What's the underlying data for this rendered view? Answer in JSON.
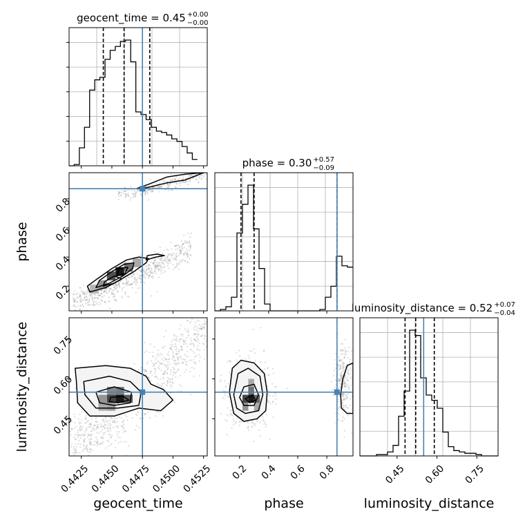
{
  "chart_data": {
    "type": "corner",
    "parameters": [
      "geocent_time",
      "phase",
      "luminosity_distance"
    ],
    "truth": {
      "geocent_time": 0.4475,
      "phase": 0.87,
      "luminosity_distance": 0.55
    },
    "titles": {
      "geocent_time": {
        "name": "geocent_time",
        "median": "0.45",
        "plus": "+0.00",
        "minus": "−0.00"
      },
      "phase": {
        "name": "phase",
        "median": "0.30",
        "plus": "+0.57",
        "minus": "−0.09"
      },
      "luminosity_distance": {
        "name": "luminosity_distance",
        "median": "0.52",
        "plus": "+0.07",
        "minus": "−0.04"
      }
    },
    "axes": {
      "geocent_time": {
        "range": [
          0.4415,
          0.4528
        ],
        "ticks": [
          0.4425,
          0.445,
          0.4475,
          0.45,
          0.4525
        ],
        "tick_labels": [
          "0.4425",
          "0.4450",
          "0.4475",
          "0.4500",
          "0.4525"
        ],
        "label": "geocent_time"
      },
      "phase": {
        "range": [
          0.03,
          0.98
        ],
        "ticks": [
          0.2,
          0.4,
          0.6,
          0.8
        ],
        "tick_labels": [
          "0.2",
          "0.4",
          "0.6",
          "0.8"
        ],
        "label": "phase"
      },
      "luminosity_distance": {
        "range": [
          0.31,
          0.83
        ],
        "ticks": [
          0.45,
          0.6,
          0.75
        ],
        "tick_labels": [
          "0.45",
          "0.60",
          "0.75"
        ],
        "label": "luminosity_distance"
      }
    },
    "histograms": {
      "geocent_time": {
        "bin_edges": [
          0.4415,
          0.44192,
          0.44234,
          0.44276,
          0.44318,
          0.4436,
          0.44402,
          0.44444,
          0.44486,
          0.44528,
          0.4457,
          0.44612,
          0.44654,
          0.44696,
          0.44738,
          0.4478,
          0.44822,
          0.44864,
          0.44906,
          0.44948,
          0.4499,
          0.45032,
          0.45074,
          0.45116,
          0.45158,
          0.452
        ],
        "counts": [
          0,
          1,
          14,
          30,
          59,
          67,
          69,
          83,
          90,
          93,
          97,
          98,
          81,
          42,
          40,
          36,
          30,
          27,
          26,
          24,
          21,
          19,
          15,
          10,
          5
        ],
        "quantiles": [
          0.4443,
          0.446,
          0.4481
        ]
      },
      "phase": {
        "bin_edges": [
          0.03,
          0.068,
          0.106,
          0.144,
          0.182,
          0.22,
          0.258,
          0.296,
          0.334,
          0.372,
          0.41,
          0.448,
          0.486,
          0.524,
          0.562,
          0.6,
          0.638,
          0.676,
          0.714,
          0.752,
          0.79,
          0.828,
          0.866,
          0.904,
          0.942,
          0.98
        ],
        "counts": [
          0,
          1,
          3,
          10,
          57,
          78,
          92,
          60,
          31,
          5,
          0,
          0,
          0,
          0,
          0,
          0,
          0,
          0,
          0,
          1,
          10,
          18,
          40,
          33,
          32
        ],
        "quantiles": [
          0.21,
          0.3,
          0.87
        ]
      },
      "luminosity_distance": {
        "bin_edges": [
          0.31,
          0.3308,
          0.3516,
          0.3724,
          0.3932,
          0.414,
          0.4348,
          0.4556,
          0.4764,
          0.4972,
          0.518,
          0.5388,
          0.5596,
          0.5804,
          0.6012,
          0.622,
          0.6428,
          0.6636,
          0.6844,
          0.7052,
          0.726,
          0.7468,
          0.7676,
          0.7884,
          0.8092,
          0.83
        ],
        "counts": [
          0,
          0,
          0,
          1,
          1,
          3,
          8,
          30,
          49,
          95,
          91,
          59,
          46,
          42,
          36,
          18,
          7,
          4,
          3,
          2,
          2,
          1,
          0,
          0,
          0
        ],
        "quantiles": [
          0.48,
          0.52,
          0.59
        ]
      }
    },
    "pairs": [
      {
        "x": "geocent_time",
        "y": "phase",
        "mode_bins": [
          {
            "x": [
              0.4453,
              0.446
            ],
            "y": [
              0.27,
              0.33
            ],
            "shade": 0.95
          },
          {
            "x": [
              0.4446,
              0.4453
            ],
            "y": [
              0.24,
              0.3
            ],
            "shade": 0.7
          },
          {
            "x": [
              0.446,
              0.4467
            ],
            "y": [
              0.3,
              0.36
            ],
            "shade": 0.55
          },
          {
            "x": [
              0.4439,
              0.4446
            ],
            "y": [
              0.18,
              0.24
            ],
            "shade": 0.4
          },
          {
            "x": [
              0.4432,
              0.4439
            ],
            "y": [
              0.15,
              0.21
            ],
            "shade": 0.25
          },
          {
            "x": [
              0.4467,
              0.4474
            ],
            "y": [
              0.33,
              0.39
            ],
            "shade": 0.3
          }
        ],
        "contours": [
          [
            [
              0.4432,
              0.16
            ],
            [
              0.4445,
              0.19
            ],
            [
              0.4456,
              0.24
            ],
            [
              0.4468,
              0.3
            ],
            [
              0.4478,
              0.36
            ],
            [
              0.448,
              0.39
            ],
            [
              0.4472,
              0.4
            ],
            [
              0.4462,
              0.38
            ],
            [
              0.445,
              0.32
            ],
            [
              0.4438,
              0.25
            ],
            [
              0.443,
              0.2
            ]
          ],
          [
            [
              0.4437,
              0.19
            ],
            [
              0.4448,
              0.22
            ],
            [
              0.4459,
              0.27
            ],
            [
              0.4467,
              0.32
            ],
            [
              0.4468,
              0.36
            ],
            [
              0.446,
              0.35
            ],
            [
              0.445,
              0.3
            ],
            [
              0.444,
              0.24
            ]
          ],
          [
            [
              0.4443,
              0.2
            ],
            [
              0.4452,
              0.22
            ],
            [
              0.4458,
              0.25
            ],
            [
              0.4452,
              0.27
            ],
            [
              0.4444,
              0.23
            ]
          ],
          [
            [
              0.4454,
              0.27
            ],
            [
              0.4461,
              0.29
            ],
            [
              0.4463,
              0.33
            ],
            [
              0.4456,
              0.32
            ]
          ],
          [
            [
              0.4478,
              0.38
            ],
            [
              0.4486,
              0.4
            ],
            [
              0.4493,
              0.41
            ],
            [
              0.4487,
              0.42
            ],
            [
              0.4479,
              0.41
            ]
          ],
          [
            [
              0.447,
              0.87
            ],
            [
              0.448,
              0.9
            ],
            [
              0.4495,
              0.95
            ],
            [
              0.451,
              0.97
            ],
            [
              0.4525,
              0.98
            ],
            [
              0.451,
              0.93
            ],
            [
              0.4495,
              0.91
            ],
            [
              0.448,
              0.88
            ]
          ]
        ],
        "scatter_bands": [
          {
            "x": [
              0.4418,
              0.4515
            ],
            "y": [
              0.1,
              0.47
            ],
            "n": 620,
            "spread": 0.045
          },
          {
            "x": [
              0.4455,
              0.4528
            ],
            "y": [
              0.83,
              0.98
            ],
            "n": 260,
            "spread": 0.02
          }
        ]
      },
      {
        "x": "geocent_time",
        "y": "luminosity_distance",
        "mode_bins": [
          {
            "x": [
              0.4453,
              0.446
            ],
            "y": [
              0.51,
              0.54
            ],
            "shade": 0.95
          },
          {
            "x": [
              0.4446,
              0.4453
            ],
            "y": [
              0.51,
              0.54
            ],
            "shade": 0.75
          },
          {
            "x": [
              0.446,
              0.4467
            ],
            "y": [
              0.51,
              0.54
            ],
            "shade": 0.65
          },
          {
            "x": [
              0.4439,
              0.4446
            ],
            "y": [
              0.51,
              0.54
            ],
            "shade": 0.4
          },
          {
            "x": [
              0.4446,
              0.4453
            ],
            "y": [
              0.54,
              0.57
            ],
            "shade": 0.45
          },
          {
            "x": [
              0.4453,
              0.446
            ],
            "y": [
              0.54,
              0.57
            ],
            "shade": 0.5
          },
          {
            "x": [
              0.4439,
              0.4446
            ],
            "y": [
              0.48,
              0.51
            ],
            "shade": 0.3
          },
          {
            "x": [
              0.4446,
              0.4453
            ],
            "y": [
              0.48,
              0.51
            ],
            "shade": 0.35
          }
        ],
        "contours": [
          [
            [
              0.442,
              0.64
            ],
            [
              0.4445,
              0.65
            ],
            [
              0.4465,
              0.64
            ],
            [
              0.4478,
              0.61
            ],
            [
              0.4482,
              0.58
            ],
            [
              0.4492,
              0.56
            ],
            [
              0.45,
              0.52
            ],
            [
              0.449,
              0.48
            ],
            [
              0.4472,
              0.49
            ],
            [
              0.4452,
              0.46
            ],
            [
              0.4432,
              0.46
            ],
            [
              0.4422,
              0.51
            ],
            [
              0.4421,
              0.59
            ]
          ],
          [
            [
              0.4427,
              0.59
            ],
            [
              0.4448,
              0.61
            ],
            [
              0.4465,
              0.59
            ],
            [
              0.4474,
              0.55
            ],
            [
              0.4472,
              0.5
            ],
            [
              0.4455,
              0.49
            ],
            [
              0.4437,
              0.49
            ],
            [
              0.4428,
              0.54
            ]
          ],
          [
            [
              0.4437,
              0.55
            ],
            [
              0.4452,
              0.57
            ],
            [
              0.4466,
              0.55
            ],
            [
              0.4465,
              0.51
            ],
            [
              0.4452,
              0.5
            ],
            [
              0.444,
              0.51
            ]
          ],
          [
            [
              0.4449,
              0.53
            ],
            [
              0.4459,
              0.535
            ],
            [
              0.4464,
              0.52
            ],
            [
              0.4455,
              0.51
            ],
            [
              0.4448,
              0.515
            ]
          ]
        ],
        "scatter_bands": [
          {
            "x": [
              0.4415,
              0.4528
            ],
            "y": [
              0.35,
              0.8
            ],
            "n": 900,
            "spread": 0.06
          }
        ]
      },
      {
        "x": "phase",
        "y": "luminosity_distance",
        "mode_bins": [
          {
            "x": [
              0.26,
              0.3
            ],
            "y": [
              0.51,
              0.54
            ],
            "shade": 0.95
          },
          {
            "x": [
              0.22,
              0.26
            ],
            "y": [
              0.51,
              0.54
            ],
            "shade": 0.75
          },
          {
            "x": [
              0.3,
              0.34
            ],
            "y": [
              0.51,
              0.54
            ],
            "shade": 0.6
          },
          {
            "x": [
              0.26,
              0.3
            ],
            "y": [
              0.54,
              0.57
            ],
            "shade": 0.55
          },
          {
            "x": [
              0.22,
              0.26
            ],
            "y": [
              0.48,
              0.51
            ],
            "shade": 0.4
          },
          {
            "x": [
              0.26,
              0.3
            ],
            "y": [
              0.57,
              0.6
            ],
            "shade": 0.3
          },
          {
            "x": [
              0.3,
              0.34
            ],
            "y": [
              0.48,
              0.51
            ],
            "shade": 0.3
          }
        ],
        "contours": [
          [
            [
              0.13,
              0.55
            ],
            [
              0.15,
              0.64
            ],
            [
              0.21,
              0.67
            ],
            [
              0.3,
              0.66
            ],
            [
              0.37,
              0.62
            ],
            [
              0.39,
              0.55
            ],
            [
              0.38,
              0.48
            ],
            [
              0.32,
              0.45
            ],
            [
              0.23,
              0.44
            ],
            [
              0.16,
              0.47
            ]
          ],
          [
            [
              0.16,
              0.54
            ],
            [
              0.19,
              0.62
            ],
            [
              0.26,
              0.64
            ],
            [
              0.34,
              0.61
            ],
            [
              0.36,
              0.54
            ],
            [
              0.33,
              0.48
            ],
            [
              0.24,
              0.47
            ],
            [
              0.18,
              0.49
            ]
          ],
          [
            [
              0.2,
              0.53
            ],
            [
              0.23,
              0.57
            ],
            [
              0.3,
              0.58
            ],
            [
              0.33,
              0.54
            ],
            [
              0.3,
              0.5
            ],
            [
              0.23,
              0.5
            ]
          ],
          [
            [
              0.24,
              0.525
            ],
            [
              0.29,
              0.54
            ],
            [
              0.31,
              0.52
            ],
            [
              0.27,
              0.51
            ]
          ],
          [
            [
              0.9,
              0.49
            ],
            [
              0.94,
              0.47
            ],
            [
              0.98,
              0.47
            ],
            [
              0.98,
              0.66
            ],
            [
              0.94,
              0.65
            ],
            [
              0.91,
              0.6
            ],
            [
              0.895,
              0.54
            ]
          ]
        ],
        "scatter_bands": [
          {
            "x": [
              0.1,
              0.42
            ],
            "y": [
              0.38,
              0.72
            ],
            "n": 700,
            "spread": 0.0
          },
          {
            "x": [
              0.84,
              0.98
            ],
            "y": [
              0.4,
              0.78
            ],
            "n": 260,
            "spread": 0.0
          }
        ]
      }
    ],
    "colors": {
      "truth": "#4682b4",
      "line": "#000000",
      "grid": "#b0b0b0",
      "points": "#808080"
    },
    "grid": true
  }
}
